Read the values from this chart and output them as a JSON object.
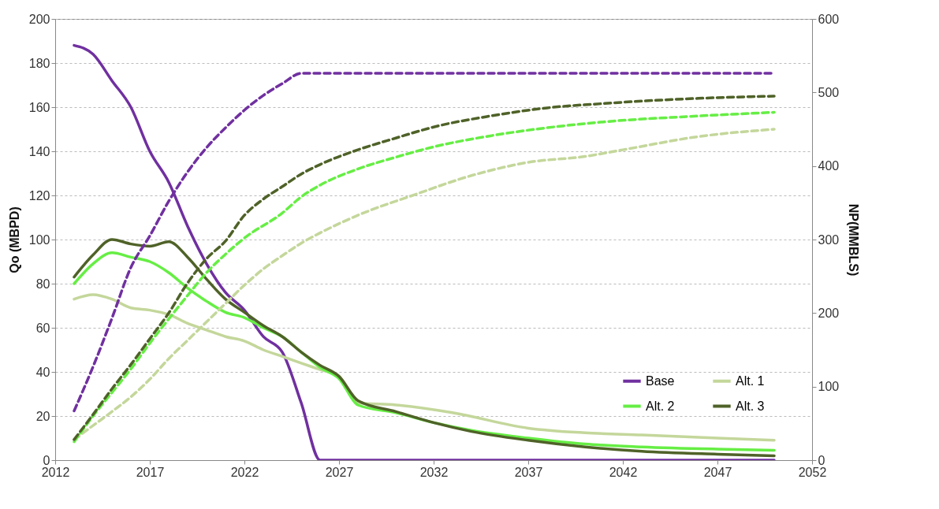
{
  "chart_data": {
    "type": "line",
    "ylabel": "Qo (MBPD)",
    "y2label": "NP(MMBLS)",
    "xlim": [
      2012,
      2052
    ],
    "xticks": [
      2012,
      2017,
      2022,
      2027,
      2032,
      2037,
      2042,
      2047,
      2052
    ],
    "ylim": [
      0,
      200
    ],
    "yticks": [
      0,
      20,
      40,
      60,
      80,
      100,
      120,
      140,
      160,
      180,
      200
    ],
    "y2lim": [
      0,
      600
    ],
    "y2ticks": [
      0,
      100,
      200,
      300,
      400,
      500,
      600
    ],
    "grid": "y",
    "legend": "bottom right",
    "line_style": "solid",
    "series": [
      {
        "name": "Base",
        "color": "#7030a0",
        "x": [
          2013,
          2014,
          2015,
          2016,
          2017,
          2018,
          2019,
          2020,
          2021,
          2022,
          2023,
          2024,
          2025,
          2026,
          2030,
          2035,
          2040,
          2045,
          2050
        ],
        "values": [
          188,
          184,
          172,
          160,
          140,
          126,
          106,
          89,
          76,
          68,
          56,
          49,
          26,
          0,
          0,
          0,
          0,
          0,
          0
        ]
      },
      {
        "name": "Alt. 1",
        "color": "#c4d79b",
        "x": [
          2013,
          2014,
          2015,
          2016,
          2017,
          2018,
          2019,
          2020,
          2021,
          2022,
          2023,
          2024,
          2025,
          2026,
          2027,
          2028,
          2030,
          2033,
          2037,
          2040,
          2043,
          2047,
          2050
        ],
        "values": [
          73,
          75,
          73,
          69,
          68,
          66,
          62,
          59,
          56,
          54,
          50,
          47,
          44,
          41,
          38,
          26,
          25,
          21.5,
          14.5,
          12.4,
          11.4,
          10,
          9
        ]
      },
      {
        "name": "Alt. 2",
        "color": "#66ee44",
        "x": [
          2013,
          2014,
          2015,
          2016,
          2017,
          2018,
          2019,
          2020,
          2021,
          2022,
          2023,
          2024,
          2025,
          2026,
          2027,
          2028,
          2030,
          2032,
          2034,
          2037,
          2040,
          2043,
          2047,
          2050
        ],
        "values": [
          80,
          89,
          94,
          92,
          90,
          85,
          78,
          72,
          67,
          64.6,
          60,
          56,
          49,
          42,
          37,
          25,
          21.5,
          17,
          13.5,
          10,
          7.3,
          6,
          5,
          4.5
        ]
      },
      {
        "name": "Alt. 3",
        "color": "#4f6228",
        "x": [
          2013,
          2014,
          2015,
          2016,
          2017,
          2018,
          2019,
          2020,
          2021,
          2022,
          2023,
          2024,
          2025,
          2026,
          2027,
          2028,
          2030,
          2032,
          2034,
          2037,
          2040,
          2043,
          2047,
          2050
        ],
        "values": [
          83,
          93,
          100,
          98,
          97,
          99,
          92,
          82,
          73,
          67,
          61,
          56,
          49,
          43,
          38,
          27,
          22,
          17,
          13,
          9,
          6,
          4,
          2.7,
          2
        ]
      },
      {
        "color": "#7030a0",
        "axis": "y2",
        "line_style": "dashed",
        "x": [
          2013,
          2014,
          2015,
          2016,
          2017,
          2018,
          2019,
          2020,
          2021,
          2022,
          2023,
          2024,
          2025,
          2030,
          2035,
          2040,
          2045,
          2050
        ],
        "values": [
          67,
          127,
          193,
          262,
          305,
          352,
          392,
          425,
          452,
          476,
          496,
          512,
          526,
          526,
          526,
          526,
          526,
          526
        ]
      },
      {
        "color": "#c4d79b",
        "axis": "y2",
        "line_style": "dashed",
        "x": [
          2013,
          2014,
          2015,
          2016,
          2017,
          2018,
          2019,
          2020,
          2021,
          2022,
          2023,
          2024,
          2025,
          2026,
          2028,
          2031,
          2034,
          2037,
          2040,
          2042,
          2046,
          2050
        ],
        "values": [
          28,
          47,
          66,
          86,
          110,
          138,
          163,
          188,
          213,
          238,
          260,
          278,
          295,
          309,
          333,
          361,
          387,
          405,
          413,
          422,
          440,
          450
        ]
      },
      {
        "color": "#66ee44",
        "axis": "y2",
        "line_style": "dashed",
        "x": [
          2013,
          2014,
          2015,
          2016,
          2017,
          2018,
          2019,
          2020,
          2021,
          2022,
          2024,
          2025,
          2026,
          2028,
          2030,
          2032,
          2035,
          2038,
          2041,
          2046,
          2050
        ],
        "values": [
          25,
          60,
          92,
          124,
          159,
          192,
          224,
          255,
          280,
          302,
          336,
          358,
          374,
          396,
          412,
          426,
          441,
          452,
          460,
          468,
          473
        ]
      },
      {
        "color": "#4f6228",
        "axis": "y2",
        "line_style": "dashed",
        "x": [
          2013,
          2014,
          2015,
          2016,
          2017,
          2018,
          2019,
          2020,
          2021,
          2022,
          2023,
          2024,
          2025,
          2026,
          2028,
          2030,
          2032,
          2035,
          2038,
          2041,
          2046,
          2050
        ],
        "values": [
          28,
          62,
          97,
          130,
          165,
          200,
          241,
          274,
          298,
          333,
          355,
          372,
          389,
          402,
          422,
          438,
          453,
          468,
          479,
          485,
          492,
          495
        ]
      }
    ]
  }
}
